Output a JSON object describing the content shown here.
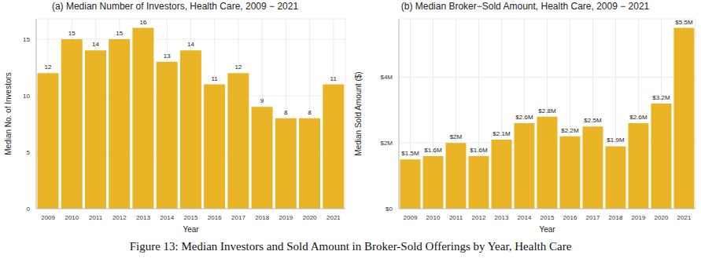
{
  "chart_data": [
    {
      "type": "bar",
      "title": "(a) Median Number of Investors, Health Care, 2009 − 2021",
      "x_label": "Year",
      "y_label": "Median No. of Investors",
      "categories": [
        "2009",
        "2010",
        "2011",
        "2012",
        "2013",
        "2014",
        "2015",
        "2016",
        "2017",
        "2018",
        "2019",
        "2020",
        "2021"
      ],
      "values": [
        12,
        15,
        14,
        15,
        16,
        13,
        14,
        11,
        12,
        9,
        8,
        8,
        11
      ],
      "color": "#E9B425",
      "ylim": [
        0,
        16.8
      ],
      "yticks": [
        0,
        5,
        10,
        15
      ],
      "grid": true,
      "data_labels": true
    },
    {
      "type": "bar",
      "title": "(b) Median Broker−Sold Amount, Health Care, 2009 − 2021",
      "x_label": "Year",
      "y_label": "Median Sold Amount ($)",
      "categories": [
        "2009",
        "2010",
        "2011",
        "2012",
        "2013",
        "2014",
        "2015",
        "2016",
        "2017",
        "2018",
        "2019",
        "2020",
        "2021"
      ],
      "values": [
        1500000,
        1600000,
        2000000,
        1600000,
        2100000,
        2600000,
        2800000,
        2200000,
        2500000,
        1900000,
        2600000,
        3200000,
        5500000
      ],
      "value_labels": [
        "$1.5M",
        "$1.6M",
        "$2M",
        "$1.6M",
        "$2.1M",
        "$2.6M",
        "$2.8M",
        "$2.2M",
        "$2.5M",
        "$1.9M",
        "$2.6M",
        "$3.2M",
        "$5.5M"
      ],
      "color": "#E9B425",
      "ylim": [
        0,
        5775000
      ],
      "yticks": [
        {
          "value": 0,
          "label": "$0"
        },
        {
          "value": 2000000,
          "label": "$2M"
        },
        {
          "value": 4000000,
          "label": "$4M"
        }
      ],
      "grid": true,
      "data_labels": true
    }
  ],
  "caption": "Figure 13: Median Investors and Sold Amount in Broker-Sold Offerings by Year, Health Care"
}
